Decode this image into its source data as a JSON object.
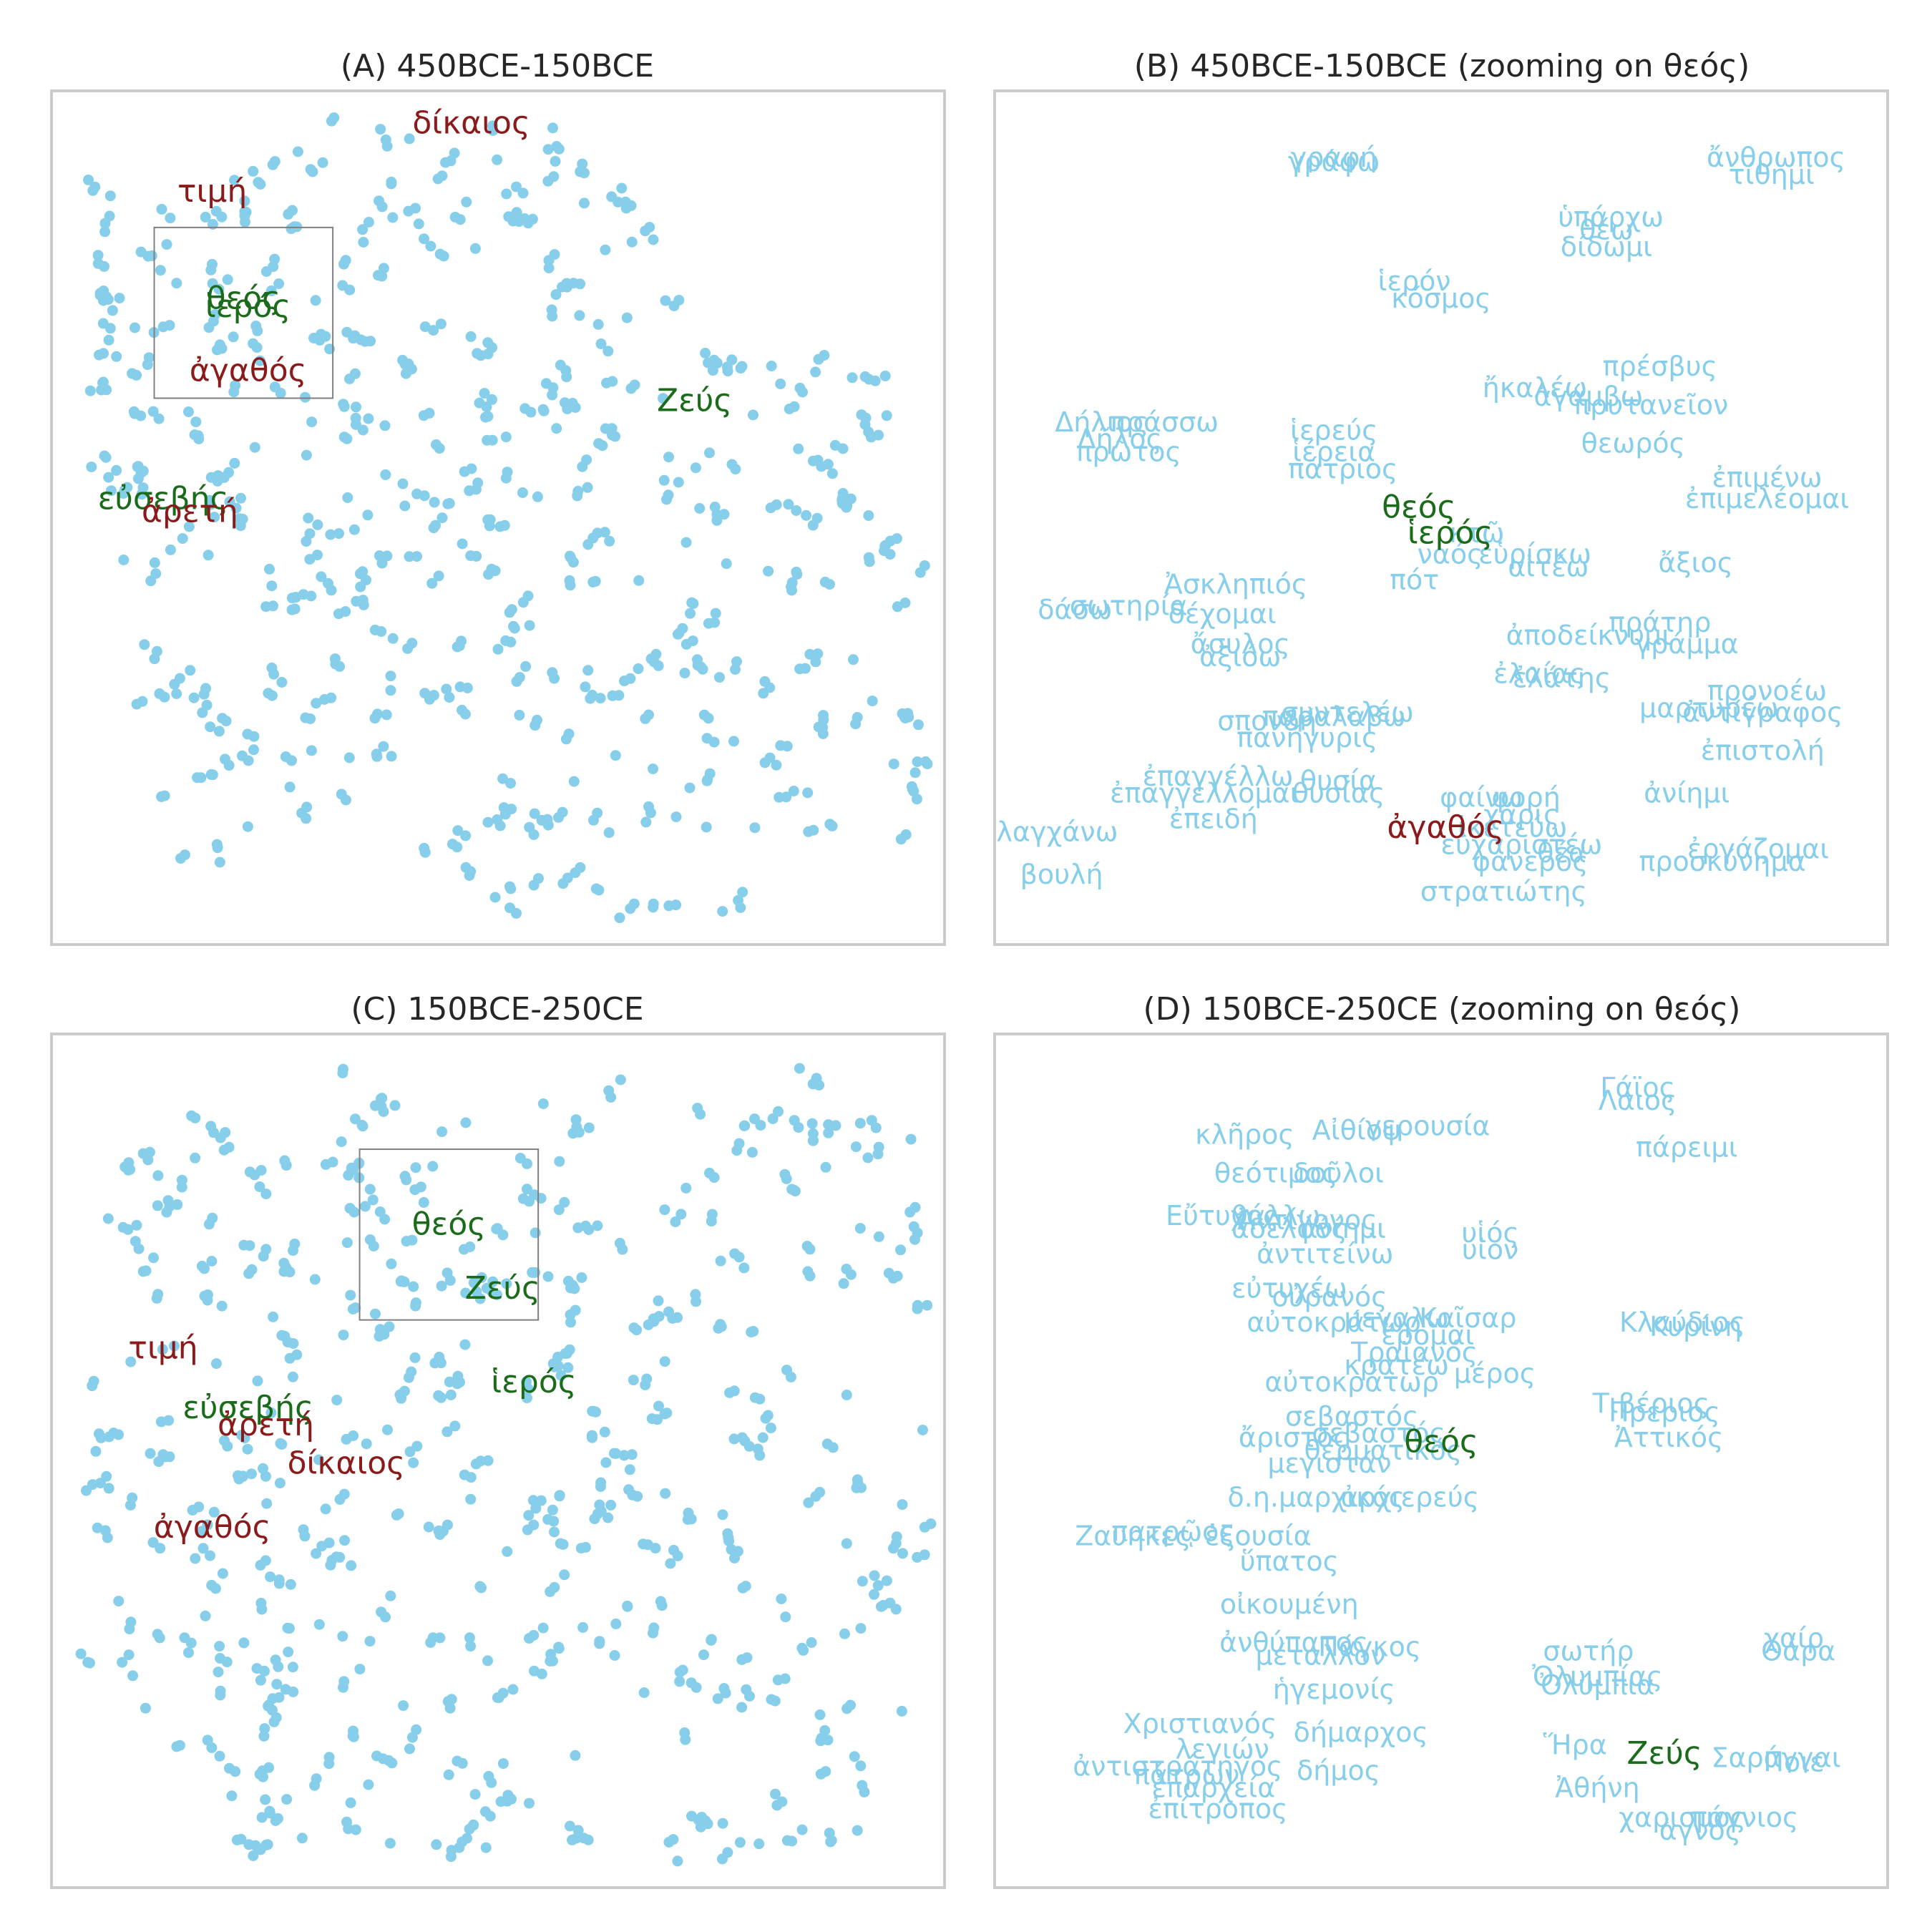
{
  "chart_data": [
    {
      "id": "A",
      "type": "scatter",
      "title": "(A) 450BCE-150BCE",
      "point_color": "#87ceeb",
      "zoom_box": {
        "x0": 0.115,
        "x1": 0.315,
        "y0": 0.64,
        "y1": 0.84
      },
      "highlighted_words": [
        {
          "text": "δίκαιος",
          "x": 0.47,
          "y": 0.96,
          "color": "#8b1a1a"
        },
        {
          "text": "τιμή",
          "x": 0.18,
          "y": 0.88,
          "color": "#8b1a1a"
        },
        {
          "text": "θεός",
          "x": 0.215,
          "y": 0.755,
          "color": "#1a6b1a"
        },
        {
          "text": "ἱερός",
          "x": 0.22,
          "y": 0.745,
          "color": "#1a6b1a"
        },
        {
          "text": "ἀγαθός",
          "x": 0.22,
          "y": 0.67,
          "color": "#8b1a1a"
        },
        {
          "text": "Ζεύς",
          "x": 0.72,
          "y": 0.635,
          "color": "#1a6b1a"
        },
        {
          "text": "εὐσεβής",
          "x": 0.125,
          "y": 0.52,
          "color": "#1a6b1a"
        },
        {
          "text": "ἀρετή",
          "x": 0.155,
          "y": 0.505,
          "color": "#8b1a1a"
        }
      ]
    },
    {
      "id": "B",
      "type": "scatter",
      "title": "(B) 450BCE-150BCE (zooming on θεός)",
      "label_color": "#87ceeb",
      "labels": [
        {
          "text": "γραφή",
          "x": 0.38,
          "y": 0.92
        },
        {
          "text": "γράφω",
          "x": 0.38,
          "y": 0.915
        },
        {
          "text": "ἄνθρωπος",
          "x": 0.875,
          "y": 0.92
        },
        {
          "text": "τίθημι",
          "x": 0.87,
          "y": 0.9
        },
        {
          "text": "ὑπάρχω",
          "x": 0.69,
          "y": 0.85
        },
        {
          "text": "θέω",
          "x": 0.685,
          "y": 0.835
        },
        {
          "text": "δίδωμι",
          "x": 0.685,
          "y": 0.815
        },
        {
          "text": "ἱερόν",
          "x": 0.47,
          "y": 0.775
        },
        {
          "text": "κόσμος",
          "x": 0.5,
          "y": 0.755
        },
        {
          "text": "πρέσβυς",
          "x": 0.745,
          "y": 0.675
        },
        {
          "text": "ἤκαλέω",
          "x": 0.605,
          "y": 0.65
        },
        {
          "text": "ἀγάμβω",
          "x": 0.665,
          "y": 0.64
        },
        {
          "text": "πρυτανεῖον",
          "x": 0.735,
          "y": 0.63
        },
        {
          "text": "Δήλιος",
          "x": 0.12,
          "y": 0.61
        },
        {
          "text": "πράσσω",
          "x": 0.19,
          "y": 0.61
        },
        {
          "text": "Δῆλος",
          "x": 0.14,
          "y": 0.59
        },
        {
          "text": "πρῶτος",
          "x": 0.15,
          "y": 0.575
        },
        {
          "text": "ἱερεύς",
          "x": 0.38,
          "y": 0.6
        },
        {
          "text": "ἱέρεια",
          "x": 0.38,
          "y": 0.575
        },
        {
          "text": "πάτριος",
          "x": 0.39,
          "y": 0.555
        },
        {
          "text": "θεωρός",
          "x": 0.715,
          "y": 0.585
        },
        {
          "text": "ἐπιμένω",
          "x": 0.865,
          "y": 0.545
        },
        {
          "text": "ἐπιμελέομαι",
          "x": 0.865,
          "y": 0.52
        },
        {
          "text": "κτῶ",
          "x": 0.54,
          "y": 0.48
        },
        {
          "text": "ναός",
          "x": 0.51,
          "y": 0.455
        },
        {
          "text": "εὑρίσκω",
          "x": 0.605,
          "y": 0.455
        },
        {
          "text": "αἰτέω",
          "x": 0.62,
          "y": 0.44
        },
        {
          "text": "ἄξιος",
          "x": 0.785,
          "y": 0.445
        },
        {
          "text": "πότ",
          "x": 0.47,
          "y": 0.425
        },
        {
          "text": "Ἀσκληπιός",
          "x": 0.27,
          "y": 0.42
        },
        {
          "text": "δάσω",
          "x": 0.09,
          "y": 0.39
        },
        {
          "text": "σωτηρία",
          "x": 0.15,
          "y": 0.395
        },
        {
          "text": "δέχομαι",
          "x": 0.255,
          "y": 0.385
        },
        {
          "text": "ἄσυλος",
          "x": 0.275,
          "y": 0.35
        },
        {
          "text": "ἀξιόω",
          "x": 0.275,
          "y": 0.335
        },
        {
          "text": "πράτηρ",
          "x": 0.745,
          "y": 0.375
        },
        {
          "text": "ἀποδείκνυμι",
          "x": 0.665,
          "y": 0.36
        },
        {
          "text": "γράμμα",
          "x": 0.775,
          "y": 0.35
        },
        {
          "text": "ἐλαίας",
          "x": 0.61,
          "y": 0.315
        },
        {
          "text": "ἐλάτης",
          "x": 0.635,
          "y": 0.31
        },
        {
          "text": "συντελέω",
          "x": 0.395,
          "y": 0.27
        },
        {
          "text": "σπονδή",
          "x": 0.305,
          "y": 0.26
        },
        {
          "text": "παραλαβω",
          "x": 0.38,
          "y": 0.265
        },
        {
          "text": "πανήγυρις",
          "x": 0.35,
          "y": 0.24
        },
        {
          "text": "προνοέω",
          "x": 0.865,
          "y": 0.295
        },
        {
          "text": "μαρτυρέω",
          "x": 0.8,
          "y": 0.275
        },
        {
          "text": "ἀντίγραφος",
          "x": 0.86,
          "y": 0.27
        },
        {
          "text": "ἐπιστολή",
          "x": 0.86,
          "y": 0.225
        },
        {
          "text": "ἐπαγγέλλω",
          "x": 0.25,
          "y": 0.195
        },
        {
          "text": "θυσία",
          "x": 0.385,
          "y": 0.19
        },
        {
          "text": "ἐπαγγέλλομαι",
          "x": 0.235,
          "y": 0.175
        },
        {
          "text": "θυσίας",
          "x": 0.385,
          "y": 0.175
        },
        {
          "text": "ἀνίημι",
          "x": 0.775,
          "y": 0.175
        },
        {
          "text": "φαίνω",
          "x": 0.545,
          "y": 0.17
        },
        {
          "text": "φορή",
          "x": 0.595,
          "y": 0.17
        },
        {
          "text": "ἐπειδή",
          "x": 0.245,
          "y": 0.145
        },
        {
          "text": "χάρις",
          "x": 0.59,
          "y": 0.15
        },
        {
          "text": "λαγχάνω",
          "x": 0.07,
          "y": 0.13
        },
        {
          "text": "ἱκετεύω",
          "x": 0.58,
          "y": 0.135
        },
        {
          "text": "εὐχαριστέω",
          "x": 0.59,
          "y": 0.115
        },
        {
          "text": "ἐργάζομαι",
          "x": 0.855,
          "y": 0.11
        },
        {
          "text": "φανερός",
          "x": 0.6,
          "y": 0.095
        },
        {
          "text": "θέα",
          "x": 0.635,
          "y": 0.105
        },
        {
          "text": "προσκύνημα",
          "x": 0.815,
          "y": 0.095
        },
        {
          "text": "βουλή",
          "x": 0.075,
          "y": 0.08
        },
        {
          "text": "στρατιώτης",
          "x": 0.57,
          "y": 0.06
        }
      ],
      "highlighted_words": [
        {
          "text": "θεός",
          "x": 0.475,
          "y": 0.51,
          "color": "#1a6b1a"
        },
        {
          "text": "ἱερός",
          "x": 0.51,
          "y": 0.48,
          "color": "#1a6b1a"
        },
        {
          "text": "ἀγαθός",
          "x": 0.505,
          "y": 0.135,
          "color": "#8b1a1a"
        }
      ]
    },
    {
      "id": "C",
      "type": "scatter",
      "title": "(C) 150BCE-250CE",
      "point_color": "#87ceeb",
      "zoom_box": {
        "x0": 0.345,
        "x1": 0.545,
        "y0": 0.665,
        "y1": 0.865
      },
      "highlighted_words": [
        {
          "text": "θεός",
          "x": 0.445,
          "y": 0.775,
          "color": "#1a6b1a"
        },
        {
          "text": "Ζεύς",
          "x": 0.505,
          "y": 0.7,
          "color": "#1a6b1a"
        },
        {
          "text": "τιμή",
          "x": 0.125,
          "y": 0.63,
          "color": "#8b1a1a"
        },
        {
          "text": "ἱερός",
          "x": 0.54,
          "y": 0.59,
          "color": "#1a6b1a"
        },
        {
          "text": "εὐσεβής",
          "x": 0.22,
          "y": 0.56,
          "color": "#1a6b1a"
        },
        {
          "text": "ἀρετή",
          "x": 0.24,
          "y": 0.54,
          "color": "#8b1a1a"
        },
        {
          "text": "δίκαιος",
          "x": 0.33,
          "y": 0.495,
          "color": "#8b1a1a"
        },
        {
          "text": "ἀγαθός",
          "x": 0.18,
          "y": 0.42,
          "color": "#8b1a1a"
        }
      ]
    },
    {
      "id": "D",
      "type": "scatter",
      "title": "(D) 150BCE-250CE (zooming on θεός)",
      "label_color": "#87ceeb",
      "labels": [
        {
          "text": "Γάϊος",
          "x": 0.72,
          "y": 0.935
        },
        {
          "text": "Λαιος",
          "x": 0.72,
          "y": 0.92
        },
        {
          "text": "κλῆρος",
          "x": 0.28,
          "y": 0.88
        },
        {
          "text": "Αἰθίοψ",
          "x": 0.405,
          "y": 0.885
        },
        {
          "text": "γερουσία",
          "x": 0.485,
          "y": 0.89
        },
        {
          "text": "πάρειμι",
          "x": 0.775,
          "y": 0.865
        },
        {
          "text": "θεότιμος",
          "x": 0.315,
          "y": 0.835
        },
        {
          "text": "δοῦλοι",
          "x": 0.385,
          "y": 0.835
        },
        {
          "text": "Εὔτυχος",
          "x": 0.255,
          "y": 0.785
        },
        {
          "text": "θάλλω",
          "x": 0.315,
          "y": 0.785
        },
        {
          "text": "Ἀντίγονος",
          "x": 0.35,
          "y": 0.78
        },
        {
          "text": "ἀνίημι",
          "x": 0.39,
          "y": 0.77
        },
        {
          "text": "ἀδελφός",
          "x": 0.33,
          "y": 0.77
        },
        {
          "text": "υἱός",
          "x": 0.555,
          "y": 0.765
        },
        {
          "text": "υἱον",
          "x": 0.555,
          "y": 0.745
        },
        {
          "text": "ἀντιτείνω",
          "x": 0.37,
          "y": 0.74
        },
        {
          "text": "εὐτυχέω",
          "x": 0.33,
          "y": 0.7
        },
        {
          "text": "οὐρανός",
          "x": 0.375,
          "y": 0.69
        },
        {
          "text": "αὐτοκράτωρ",
          "x": 0.38,
          "y": 0.66
        },
        {
          "text": "μεγαλω",
          "x": 0.45,
          "y": 0.665
        },
        {
          "text": "Καῖσαρ",
          "x": 0.53,
          "y": 0.665
        },
        {
          "text": "Κλαύδιος",
          "x": 0.77,
          "y": 0.66
        },
        {
          "text": "Κυρίνη",
          "x": 0.785,
          "y": 0.655
        },
        {
          "text": "ἔρομαι",
          "x": 0.485,
          "y": 0.645
        },
        {
          "text": "Τραϊανός",
          "x": 0.47,
          "y": 0.625
        },
        {
          "text": "κρατέω",
          "x": 0.45,
          "y": 0.61
        },
        {
          "text": "μέρος",
          "x": 0.56,
          "y": 0.6
        },
        {
          "text": "αὐτοκράτωρ",
          "x": 0.4,
          "y": 0.59
        },
        {
          "text": "Τιβέριος",
          "x": 0.735,
          "y": 0.565
        },
        {
          "text": "Πρέριος",
          "x": 0.75,
          "y": 0.555
        },
        {
          "text": "σεβαστός",
          "x": 0.4,
          "y": 0.55
        },
        {
          "text": "σεβαστός",
          "x": 0.43,
          "y": 0.53
        },
        {
          "text": "Ἀττικός",
          "x": 0.755,
          "y": 0.525
        },
        {
          "text": "ἄριστος",
          "x": 0.335,
          "y": 0.525
        },
        {
          "text": "θερματικός",
          "x": 0.435,
          "y": 0.51
        },
        {
          "text": "μεγιστάν",
          "x": 0.375,
          "y": 0.495
        },
        {
          "text": "δ.η.μαρχικός",
          "x": 0.36,
          "y": 0.455
        },
        {
          "text": "ἀρχιερεύς",
          "x": 0.465,
          "y": 0.455
        },
        {
          "text": "πατρῷος",
          "x": 0.2,
          "y": 0.415
        },
        {
          "text": "Ζαυηκες",
          "x": 0.155,
          "y": 0.41
        },
        {
          "text": "ἐξουσία",
          "x": 0.295,
          "y": 0.41
        },
        {
          "text": "ὕπατος",
          "x": 0.33,
          "y": 0.38
        },
        {
          "text": "οἰκουμένη",
          "x": 0.33,
          "y": 0.33
        },
        {
          "text": "ἀνθύπατος",
          "x": 0.335,
          "y": 0.285
        },
        {
          "text": "Πάγκος",
          "x": 0.42,
          "y": 0.28
        },
        {
          "text": "μέταλλον",
          "x": 0.365,
          "y": 0.27
        },
        {
          "text": "σωτήρ",
          "x": 0.665,
          "y": 0.275
        },
        {
          "text": "χαίρ",
          "x": 0.895,
          "y": 0.29
        },
        {
          "text": "Θάρα",
          "x": 0.9,
          "y": 0.275
        },
        {
          "text": "Ὀλυμπίας",
          "x": 0.675,
          "y": 0.245
        },
        {
          "text": "Ὀλύμπια",
          "x": 0.675,
          "y": 0.235
        },
        {
          "text": "ἡγεμονίς",
          "x": 0.38,
          "y": 0.23
        },
        {
          "text": "Χριστιανός",
          "x": 0.23,
          "y": 0.19
        },
        {
          "text": "δήμαρχος",
          "x": 0.41,
          "y": 0.18
        },
        {
          "text": "Ἥρα",
          "x": 0.65,
          "y": 0.165
        },
        {
          "text": "λεγιών",
          "x": 0.255,
          "y": 0.16
        },
        {
          "text": "Σαράγγαι",
          "x": 0.875,
          "y": 0.15
        },
        {
          "text": "Ποιε",
          "x": 0.895,
          "y": 0.145
        },
        {
          "text": "ἀντιστράτηγος",
          "x": 0.205,
          "y": 0.14
        },
        {
          "text": "δήμος",
          "x": 0.385,
          "y": 0.135
        },
        {
          "text": "πάτρων",
          "x": 0.215,
          "y": 0.13
        },
        {
          "text": "ἐπαρχεία",
          "x": 0.245,
          "y": 0.115
        },
        {
          "text": "Ἀθήνη",
          "x": 0.675,
          "y": 0.115
        },
        {
          "text": "ἐπίτροπος",
          "x": 0.25,
          "y": 0.09
        },
        {
          "text": "χαρισμος",
          "x": 0.77,
          "y": 0.08
        },
        {
          "text": "πάγνιος",
          "x": 0.84,
          "y": 0.08
        },
        {
          "text": "ἁγνός",
          "x": 0.79,
          "y": 0.065
        }
      ],
      "highlighted_words": [
        {
          "text": "θεός",
          "x": 0.5,
          "y": 0.52,
          "color": "#1a6b1a"
        },
        {
          "text": "Ζεύς",
          "x": 0.75,
          "y": 0.155,
          "color": "#1a6b1a"
        }
      ]
    }
  ]
}
